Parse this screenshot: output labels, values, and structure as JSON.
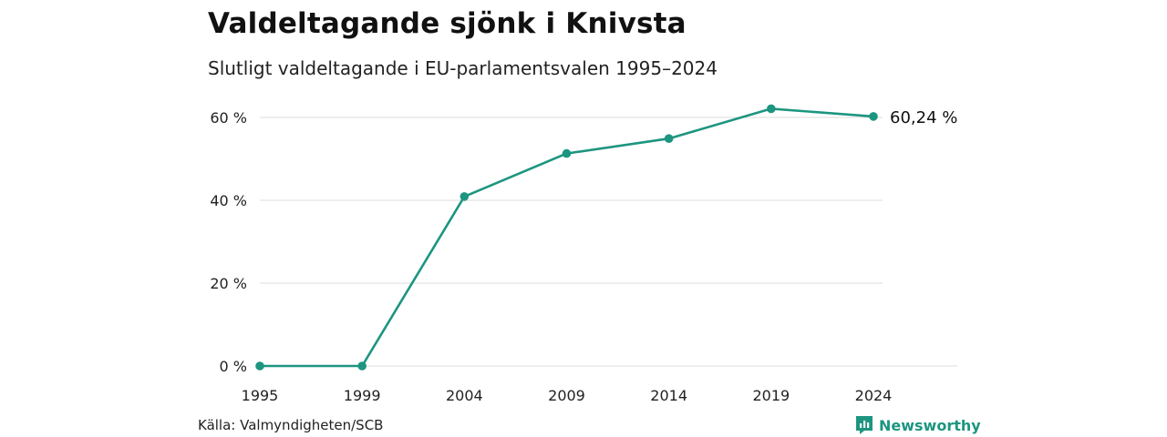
{
  "header": {
    "title": "Valdeltagande sjönk i Knivsta",
    "subtitle": "Slutligt valdeltagande i EU-parlamentsvalen 1995–2024"
  },
  "footer": {
    "source": "Källa: Valmyndigheten/SCB",
    "brand": "Newsworthy"
  },
  "colors": {
    "line": "#1d9580",
    "grid": "#dddddd",
    "brand": "#1d9580"
  },
  "chart_data": {
    "type": "line",
    "x": [
      "1995",
      "1999",
      "2004",
      "2009",
      "2014",
      "2019",
      "2024"
    ],
    "series": [
      {
        "values": [
          0,
          0,
          40.9,
          51.3,
          54.9,
          62.1,
          60.24
        ]
      }
    ],
    "ylim": [
      0,
      60
    ],
    "yticks": [
      0,
      20,
      40,
      60
    ],
    "ytick_labels": [
      "0 %",
      "20 %",
      "40 %",
      "60 %"
    ],
    "end_label": "60,24 %",
    "grid": true,
    "legend": "none"
  }
}
